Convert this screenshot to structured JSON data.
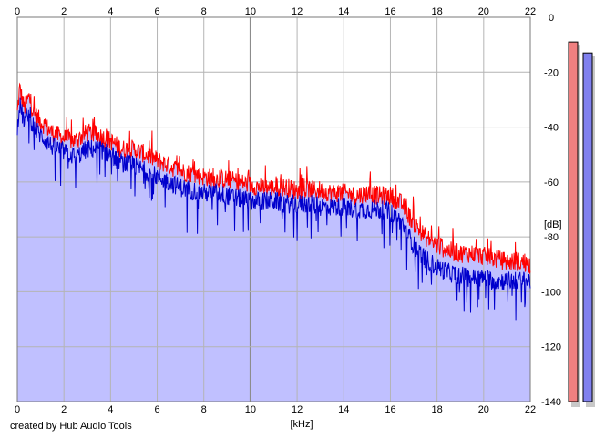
{
  "footer": "created by Hub Audio Tools",
  "colors": {
    "background": "#ffffff",
    "plot_fill": "#c0c0ff",
    "grid": "#b4b4b4",
    "grid_major": "#8c8c8c",
    "left_channel": "#ff0000",
    "right_channel": "#0000cc",
    "meter_left": "#f08080",
    "meter_right": "#8080ee",
    "meter_shadow": "#c8c8c8"
  },
  "chart_data": {
    "type": "area",
    "title": "",
    "xlabel": "[kHz]",
    "ylabel": "[dB]",
    "xlim": [
      0,
      22
    ],
    "ylim": [
      -140,
      0
    ],
    "x_ticks": [
      0,
      2,
      4,
      6,
      8,
      10,
      12,
      14,
      16,
      18,
      20,
      22
    ],
    "y_ticks": [
      0,
      -20,
      -40,
      -60,
      -80,
      -100,
      -120,
      -140
    ],
    "y_tick_labels": [
      "0",
      "-20",
      "-40",
      "-60",
      "-80",
      "-100",
      "-120",
      "-140"
    ],
    "grid": true,
    "series": [
      {
        "x": [
          0,
          0.1,
          0.3,
          0.5,
          0.7,
          1,
          1.5,
          2,
          2.5,
          3,
          3.5,
          4,
          4.5,
          5,
          5.5,
          6,
          6.5,
          7,
          7.5,
          8,
          8.5,
          9,
          9.5,
          10,
          10.5,
          11,
          11.5,
          12,
          12.5,
          13,
          13.5,
          14,
          14.5,
          15,
          15.5,
          16,
          16.5,
          17,
          17.5,
          18,
          18.5,
          19,
          19.5,
          20,
          20.5,
          21,
          21.5,
          22
        ],
        "y": [
          -35,
          -26,
          -33,
          -29,
          -35,
          -38,
          -42,
          -44,
          -45,
          -42,
          -43,
          -45,
          -48,
          -48,
          -50,
          -52,
          -54,
          -56,
          -57,
          -58,
          -59,
          -59,
          -60,
          -61,
          -62,
          -62,
          -62,
          -63,
          -63,
          -63,
          -64,
          -64,
          -65,
          -64,
          -65,
          -65,
          -68,
          -75,
          -80,
          -83,
          -85,
          -86,
          -86,
          -87,
          -88,
          -89,
          -89,
          -90
        ]
      },
      {
        "x": [
          0,
          0.1,
          0.3,
          0.5,
          0.7,
          1,
          1.5,
          2,
          2.5,
          3,
          3.5,
          4,
          4.5,
          5,
          5.5,
          6,
          6.5,
          7,
          7.5,
          8,
          8.5,
          9,
          9.5,
          10,
          10.5,
          11,
          11.5,
          12,
          12.5,
          13,
          13.5,
          14,
          14.5,
          15,
          15.5,
          16,
          16.5,
          17,
          17.5,
          18,
          18.5,
          19,
          19.5,
          20,
          20.5,
          21,
          21.5,
          22
        ],
        "y": [
          -40,
          -32,
          -38,
          -34,
          -40,
          -43,
          -47,
          -49,
          -51,
          -48,
          -48,
          -50,
          -53,
          -54,
          -56,
          -58,
          -60,
          -62,
          -63,
          -64,
          -64,
          -65,
          -66,
          -67,
          -67,
          -67,
          -68,
          -68,
          -68,
          -69,
          -69,
          -69,
          -70,
          -70,
          -70,
          -71,
          -75,
          -83,
          -88,
          -91,
          -93,
          -94,
          -95,
          -95,
          -96,
          -96,
          -96,
          -96
        ]
      }
    ],
    "meters": {
      "ylim": [
        -140,
        0
      ],
      "left": -9,
      "right": -13
    }
  }
}
